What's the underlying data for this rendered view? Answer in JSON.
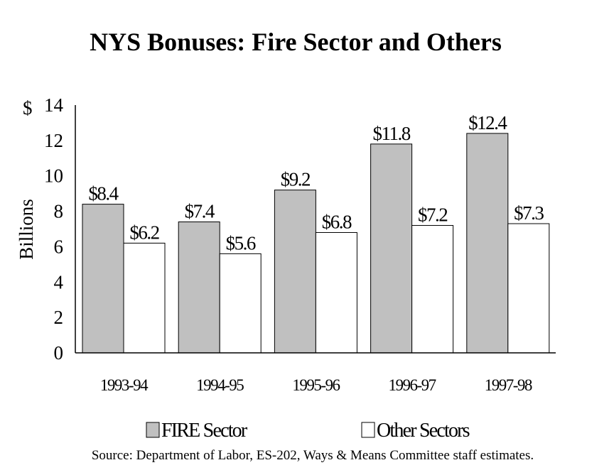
{
  "chart_data": {
    "type": "bar",
    "title": "NYS Bonuses:  Fire Sector and Others",
    "ylabel": "Billions",
    "y_unit_label": "$",
    "categories": [
      "1993-94",
      "1994-95",
      "1995-96",
      "1996-97",
      "1997-98"
    ],
    "ylim": [
      0,
      14
    ],
    "yticks": [
      0,
      2,
      4,
      6,
      8,
      10,
      12,
      14
    ],
    "grid": false,
    "legend_position": "bottom",
    "series": [
      {
        "name": "FIRE Sector",
        "color": "#c0c0c0",
        "values": [
          8.4,
          7.4,
          9.2,
          11.8,
          12.4
        ],
        "labels": [
          "$8.4",
          "$7.4",
          "$9.2",
          "$11.8",
          "$12.4"
        ]
      },
      {
        "name": "Other Sectors",
        "color": "#ffffff",
        "values": [
          6.2,
          5.6,
          6.8,
          7.2,
          7.3
        ],
        "labels": [
          "$6.2",
          "$5.6",
          "$6.8",
          "$7.2",
          "$7.3"
        ]
      }
    ],
    "source": "Source:  Department of Labor, ES-202, Ways & Means Committee staff estimates."
  }
}
